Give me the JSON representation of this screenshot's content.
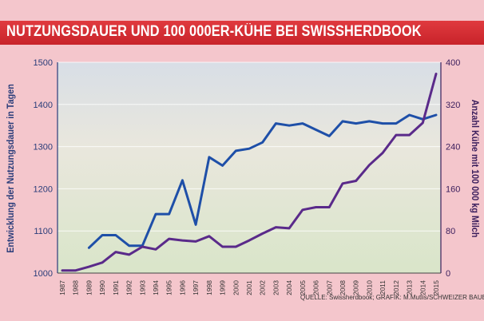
{
  "header": {
    "title": "NUTZUNGSDAUER UND 100 000ER-KÜHE BEI SWISSHERDBOOK"
  },
  "source": "QUELLE: Swissherdbook; GRAFIK: M.Mutlis/SCHWEIZER BAUER",
  "colors": {
    "title_bar": "#c8232a",
    "line_left": "#1e4fa8",
    "line_right": "#5a2a8a",
    "background": "#f4c6cc"
  },
  "chart_data": {
    "type": "line",
    "title": "NUTZUNGSDAUER UND 100 000ER-KÜHE BEI SWISSHERDBOOK",
    "ylabel": "Entwicklung der Nutzungsdauer in Tagen",
    "ylabel_right": "Anzahl Kühe mit 100 000 kg Milch",
    "x": [
      "1987",
      "1988",
      "1989",
      "1990",
      "1991",
      "1992",
      "1993",
      "1994",
      "1995",
      "1996",
      "1997",
      "1998",
      "1999",
      "2000",
      "2001",
      "2002",
      "2003",
      "2004",
      "2005",
      "2006",
      "2007",
      "2008",
      "2009",
      "2010",
      "2011",
      "2012",
      "2013",
      "2014",
      "2015"
    ],
    "ylim": [
      1000,
      1500
    ],
    "ylim_right": [
      0,
      400
    ],
    "yticks": [
      "1000",
      "1100",
      "1200",
      "1300",
      "1400",
      "1500"
    ],
    "yticks_right": [
      "0",
      "80",
      "160",
      "240",
      "320",
      "400"
    ],
    "grid": true,
    "series": [
      {
        "axis": "left",
        "values": [
          null,
          null,
          1060,
          1090,
          1090,
          1065,
          1065,
          1140,
          1140,
          1220,
          1115,
          1275,
          1255,
          1290,
          1295,
          1310,
          1355,
          1350,
          1355,
          1340,
          1325,
          1360,
          1355,
          1360,
          1355,
          1355,
          1375,
          1365,
          1375
        ]
      },
      {
        "axis": "right",
        "values": [
          5,
          5,
          12,
          20,
          40,
          35,
          50,
          45,
          65,
          62,
          60,
          70,
          50,
          50,
          62,
          75,
          87,
          85,
          120,
          125,
          125,
          170,
          175,
          205,
          228,
          262,
          262,
          285,
          378
        ]
      }
    ]
  }
}
